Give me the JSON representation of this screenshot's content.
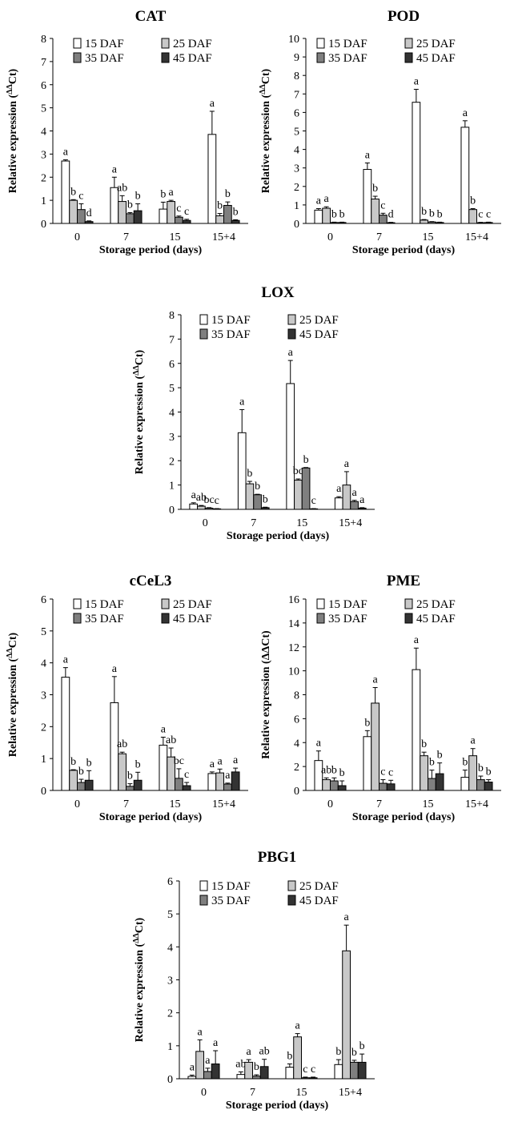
{
  "colors": {
    "15 DAF": "#ffffff",
    "25 DAF": "#c8c8c8",
    "35 DAF": "#7f7f7f",
    "45 DAF": "#333333"
  },
  "chart_data": [
    {
      "type": "bar",
      "title": "CAT",
      "xlabel": "Storage period (days)",
      "ylabel": "Relative expression (ΔΔCt)",
      "ylabel_parts": [
        "Relative expression (",
        "ΔΔ",
        "Ct)"
      ],
      "ylim": [
        0,
        8
      ],
      "yticks": [
        0,
        1,
        2,
        3,
        4,
        5,
        6,
        7,
        8
      ],
      "categories": [
        "0",
        "7",
        "15",
        "15+4"
      ],
      "series": [
        {
          "name": "15 DAF",
          "values": [
            2.7,
            1.55,
            0.62,
            3.85
          ],
          "errors": [
            0.05,
            0.45,
            0.3,
            1.0
          ],
          "letters": [
            "a",
            "a",
            "b",
            "a"
          ]
        },
        {
          "name": "25 DAF",
          "values": [
            1.0,
            0.95,
            0.95,
            0.33
          ],
          "errors": [
            0.03,
            0.25,
            0.05,
            0.1
          ],
          "letters": [
            "b",
            "ab",
            "a",
            "b"
          ]
        },
        {
          "name": "35 DAF",
          "values": [
            0.6,
            0.42,
            0.27,
            0.78
          ],
          "errors": [
            0.25,
            0.05,
            0.05,
            0.15
          ],
          "letters": [
            "c",
            "b",
            "c",
            "b"
          ]
        },
        {
          "name": "45 DAF",
          "values": [
            0.08,
            0.55,
            0.13,
            0.13
          ],
          "errors": [
            0.03,
            0.3,
            0.05,
            0.03
          ],
          "letters": [
            "d",
            "b",
            "c",
            "b"
          ]
        }
      ]
    },
    {
      "type": "bar",
      "title": "POD",
      "xlabel": "Storage period (days)",
      "ylabel": "Relative expression (ΔΔCt)",
      "ylabel_parts": [
        "Relative expression (",
        "ΔΔ",
        "Ct)"
      ],
      "ylim": [
        0,
        10
      ],
      "yticks": [
        0,
        1,
        2,
        3,
        4,
        5,
        6,
        7,
        8,
        9,
        10
      ],
      "categories": [
        "0",
        "7",
        "15",
        "15+4"
      ],
      "series": [
        {
          "name": "15 DAF",
          "values": [
            0.72,
            2.92,
            6.55,
            5.2
          ],
          "errors": [
            0.08,
            0.35,
            0.7,
            0.35
          ],
          "letters": [
            "a",
            "a",
            "a",
            "a"
          ]
        },
        {
          "name": "25 DAF",
          "values": [
            0.82,
            1.32,
            0.18,
            0.75
          ],
          "errors": [
            0.08,
            0.15,
            0.03,
            0.05
          ],
          "letters": [
            "a",
            "b",
            "b",
            "b"
          ]
        },
        {
          "name": "35 DAF",
          "values": [
            0.05,
            0.45,
            0.08,
            0.04
          ],
          "errors": [
            0.02,
            0.1,
            0.02,
            0.02
          ],
          "letters": [
            "b",
            "c",
            "b",
            "c"
          ]
        },
        {
          "name": "45 DAF",
          "values": [
            0.05,
            0.04,
            0.05,
            0.05
          ],
          "errors": [
            0.02,
            0.02,
            0.02,
            0.02
          ],
          "letters": [
            "b",
            "d",
            "b",
            "c"
          ]
        }
      ]
    },
    {
      "type": "bar",
      "title": "LOX",
      "xlabel": "Storage period (days)",
      "ylabel": "Relative expression (ΔΔCt)",
      "ylabel_parts": [
        "Relative expression (",
        "ΔΔ",
        "Ct)"
      ],
      "ylim": [
        0,
        8
      ],
      "yticks": [
        0,
        1,
        2,
        3,
        4,
        5,
        6,
        7,
        8
      ],
      "categories": [
        "0",
        "7",
        "15",
        "15+4"
      ],
      "series": [
        {
          "name": "15 DAF",
          "values": [
            0.22,
            3.15,
            5.17,
            0.47
          ],
          "errors": [
            0.05,
            0.95,
            0.95,
            0.05
          ],
          "letters": [
            "a",
            "a",
            "a",
            "a"
          ]
        },
        {
          "name": "25 DAF",
          "values": [
            0.13,
            1.05,
            1.2,
            1.0
          ],
          "errors": [
            0.03,
            0.1,
            0.05,
            0.55
          ],
          "letters": [
            "ab",
            "b",
            "bc",
            "a"
          ]
        },
        {
          "name": "35 DAF",
          "values": [
            0.05,
            0.6,
            1.7,
            0.32
          ],
          "errors": [
            0.02,
            0.02,
            0.02,
            0.05
          ],
          "letters": [
            "bc",
            "b",
            "b",
            "a"
          ]
        },
        {
          "name": "45 DAF",
          "values": [
            0.02,
            0.07,
            0.02,
            0.05
          ],
          "errors": [
            0.01,
            0.02,
            0.01,
            0.02
          ],
          "letters": [
            "c",
            "b",
            "c",
            "a"
          ]
        }
      ]
    },
    {
      "type": "bar",
      "title": "cCeL3",
      "xlabel": "Storage period (days)",
      "ylabel": "Relative expression (ΔΔCt)",
      "ylabel_parts": [
        "Relative expression (",
        "ΔΔ",
        "Ct)"
      ],
      "ylim": [
        0,
        6
      ],
      "yticks": [
        0,
        1,
        2,
        3,
        4,
        5,
        6
      ],
      "categories": [
        "0",
        "7",
        "15",
        "15+4"
      ],
      "series": [
        {
          "name": "15 DAF",
          "values": [
            3.55,
            2.75,
            1.42,
            0.53
          ],
          "errors": [
            0.3,
            0.82,
            0.25,
            0.05
          ],
          "letters": [
            "a",
            "a",
            "a",
            "a"
          ]
        },
        {
          "name": "25 DAF",
          "values": [
            0.63,
            1.15,
            1.05,
            0.55
          ],
          "errors": [
            0.02,
            0.05,
            0.28,
            0.12
          ],
          "letters": [
            "b",
            "ab",
            "ab",
            "a"
          ]
        },
        {
          "name": "35 DAF",
          "values": [
            0.25,
            0.13,
            0.38,
            0.2
          ],
          "errors": [
            0.1,
            0.08,
            0.3,
            0.03
          ],
          "letters": [
            "b",
            "b",
            "bc",
            "a"
          ]
        },
        {
          "name": "45 DAF",
          "values": [
            0.32,
            0.32,
            0.15,
            0.58
          ],
          "errors": [
            0.3,
            0.25,
            0.1,
            0.12
          ],
          "letters": [
            "b",
            "b",
            "c",
            "a"
          ]
        }
      ]
    },
    {
      "type": "bar",
      "title": "PME",
      "xlabel": "Storage period (days)",
      "ylabel": "Relative expression (ΔΔCt)",
      "ylabel_parts": [
        "Relative expression (ΔΔCt)"
      ],
      "ylim": [
        0,
        16
      ],
      "yticks": [
        0,
        2,
        4,
        6,
        8,
        10,
        12,
        14,
        16
      ],
      "categories": [
        "0",
        "7",
        "15",
        "15+4"
      ],
      "series": [
        {
          "name": "15 DAF",
          "values": [
            2.5,
            4.5,
            10.1,
            1.1
          ],
          "errors": [
            0.8,
            0.5,
            1.8,
            0.6
          ],
          "letters": [
            "a",
            "b",
            "a",
            "b"
          ]
        },
        {
          "name": "25 DAF",
          "values": [
            0.9,
            7.3,
            2.9,
            2.9
          ],
          "errors": [
            0.15,
            1.3,
            0.3,
            0.6
          ],
          "letters": [
            "ab",
            "a",
            "b",
            "a"
          ]
        },
        {
          "name": "35 DAF",
          "values": [
            0.8,
            0.6,
            1.0,
            0.9
          ],
          "errors": [
            0.25,
            0.3,
            0.7,
            0.3
          ],
          "letters": [
            "b",
            "c",
            "b",
            "b"
          ]
        },
        {
          "name": "45 DAF",
          "values": [
            0.4,
            0.55,
            1.4,
            0.7
          ],
          "errors": [
            0.4,
            0.3,
            0.9,
            0.2
          ],
          "letters": [
            "b",
            "c",
            "b",
            "b"
          ]
        }
      ]
    },
    {
      "type": "bar",
      "title": "PBG1",
      "xlabel": "Storage period (days)",
      "ylabel": "Relative expression (ΔΔCt)",
      "ylabel_parts": [
        "Relative expression (",
        "ΔΔ",
        "Ct)"
      ],
      "ylim": [
        0,
        6
      ],
      "yticks": [
        0,
        1,
        2,
        3,
        4,
        5,
        6
      ],
      "categories": [
        "0",
        "7",
        "15",
        "15+4"
      ],
      "series": [
        {
          "name": "15 DAF",
          "values": [
            0.07,
            0.13,
            0.35,
            0.43
          ],
          "errors": [
            0.04,
            0.08,
            0.1,
            0.15
          ],
          "letters": [
            "a",
            "ab",
            "b",
            "b"
          ]
        },
        {
          "name": "25 DAF",
          "values": [
            0.83,
            0.5,
            1.27,
            3.88
          ],
          "errors": [
            0.35,
            0.08,
            0.1,
            0.78
          ],
          "letters": [
            "a",
            "a",
            "a",
            "a"
          ]
        },
        {
          "name": "35 DAF",
          "values": [
            0.22,
            0.08,
            0.03,
            0.5
          ],
          "errors": [
            0.1,
            0.04,
            0.02,
            0.06
          ],
          "letters": [
            "a",
            "b",
            "c",
            "b"
          ]
        },
        {
          "name": "45 DAF",
          "values": [
            0.45,
            0.37,
            0.03,
            0.5
          ],
          "errors": [
            0.4,
            0.22,
            0.02,
            0.25
          ],
          "letters": [
            "a",
            "ab",
            "c",
            "b"
          ]
        }
      ]
    }
  ]
}
